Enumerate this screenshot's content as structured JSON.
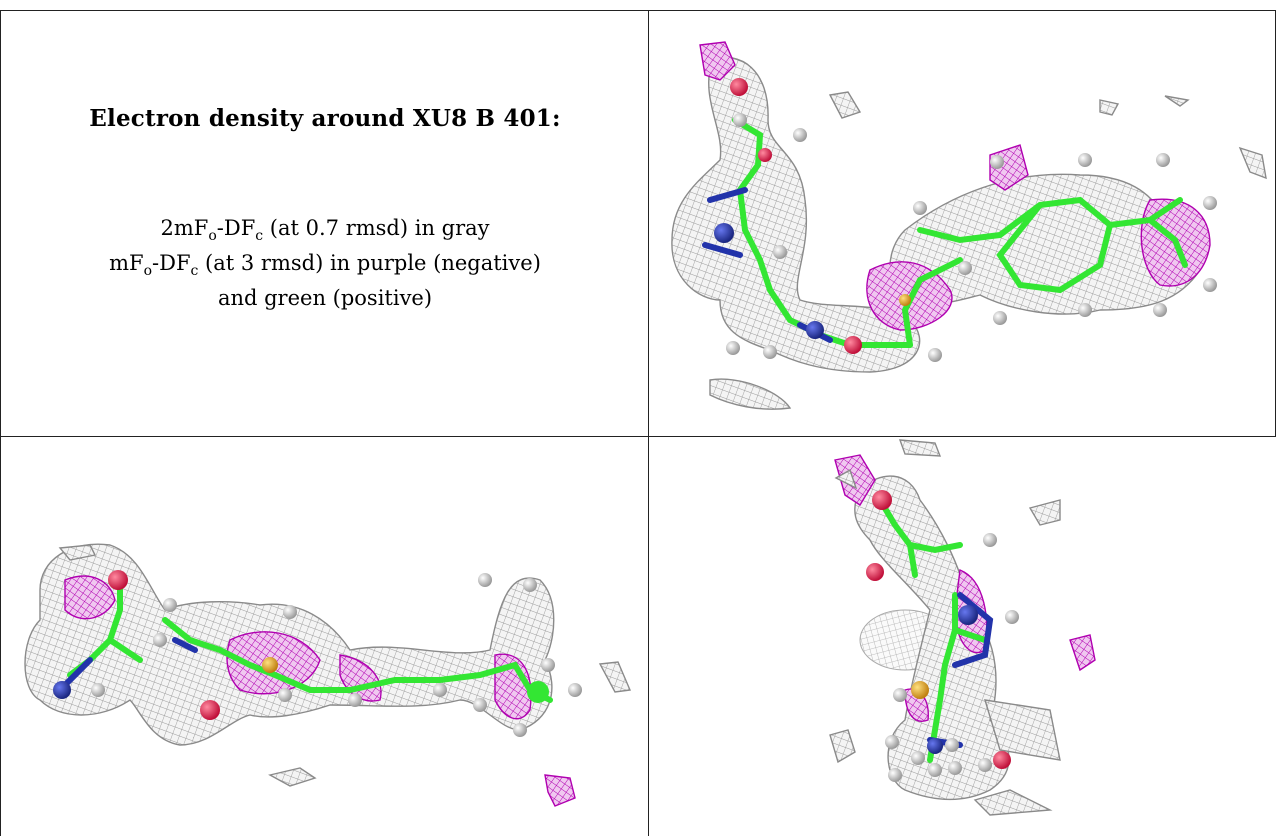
{
  "panel_text": {
    "title": "Electron density around XU8 B 401:",
    "line1_prefix": "2mF",
    "line1_sub1": "o",
    "line1_mid": "-DF",
    "line1_sub2": "c",
    "line1_suffix": " (at 0.7 rmsd) in gray",
    "line2_prefix": "mF",
    "line2_sub1": "o",
    "line2_mid": "-DF",
    "line2_sub2": "c",
    "line2_suffix": " (at 3 rmsd) in purple (negative)",
    "line3": "and green (positive)"
  },
  "colors": {
    "gray_mesh": "#8a8a8a",
    "purple_mesh": "#b000b0",
    "carbon": "#33e633",
    "nitrogen": "#2233aa",
    "oxygen": "#e0204a",
    "sulfur": "#e8b020",
    "hydrogen": "#e6e6e6"
  },
  "panels": [
    {
      "name": "legend-panel"
    },
    {
      "name": "view-top-right"
    },
    {
      "name": "view-bottom-left"
    },
    {
      "name": "view-bottom-right"
    }
  ]
}
